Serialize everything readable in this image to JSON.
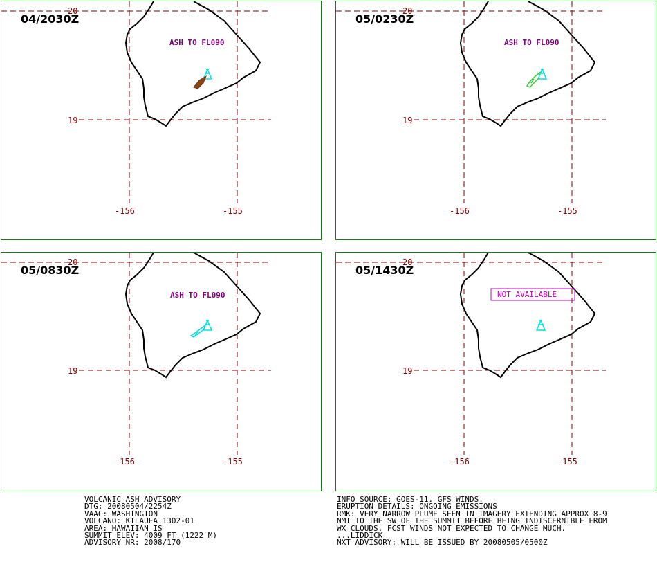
{
  "panels": [
    {
      "time": "04/2030Z",
      "label": "ASH TO FL090",
      "plume": "brown"
    },
    {
      "time": "05/0230Z",
      "label": "ASH TO FL090",
      "plume": "green"
    },
    {
      "time": "05/0830Z",
      "label": "ASH TO FL090",
      "plume": "cyan"
    },
    {
      "time": "05/1430Z",
      "label": "NOT AVAILABLE",
      "plume": "none"
    }
  ],
  "grid": {
    "lat_top": "20",
    "lat_bottom": "19",
    "lon_left": "-156",
    "lon_right": "-155"
  },
  "colors": {
    "panel_border": "#108010",
    "grid": "#800000",
    "ash_label": "#800080",
    "volcano": "#00e0e0",
    "plume_brown": "#8b4513",
    "plume_green": "#30d030",
    "plume_cyan": "#00e0e0",
    "not_available": "#c000c0"
  },
  "advisory_left": [
    "VOLCANIC ASH ADVISORY",
    "DTG: 20080504/2254Z",
    "VAAC: WASHINGTON",
    "VOLCANO: KILAUEA 1302-01",
    "AREA: HAWAIIAN IS",
    "SUMMIT ELEV: 4009 FT (1222 M)",
    "ADVISORY NR: 2008/170"
  ],
  "advisory_right": [
    "INFO SOURCE: GOES-11. GFS WINDS.",
    "ERUPTION DETAILS: ONGOING EMISSIONS",
    "RMK: VERY NARROW PLUME SEEN IN IMAGERY EXTENDING APPROX 8-9",
    "NMI TO THE SW OF THE SUMMIT BEFORE BEING INDISCERNIBLE FROM",
    "WX CLOUDS. FCST WINDS NOT EXPECTED TO CHANGE MUCH.",
    "...LIDDICK",
    "NXT ADVISORY: WILL BE ISSUED BY 20080505/0500Z"
  ]
}
